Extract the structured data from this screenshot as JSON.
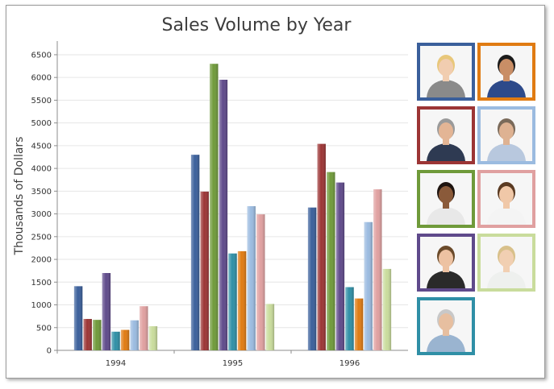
{
  "chart_data": {
    "type": "bar",
    "title": "Sales Volume by Year",
    "xlabel": "",
    "ylabel": "Thousands of Dollars",
    "categories": [
      "1994",
      "1995",
      "1996"
    ],
    "ylim": [
      0,
      6800
    ],
    "yticks": [
      0,
      500,
      1000,
      1500,
      2000,
      2500,
      3000,
      3500,
      4000,
      4500,
      5000,
      5500,
      6000,
      6500
    ],
    "grid": true,
    "legend": "right (photos)",
    "series": [
      {
        "color": "#3a5f9b",
        "values": [
          1410,
          4300,
          3140
        ]
      },
      {
        "color": "#9c3535",
        "values": [
          690,
          3490,
          4540
        ]
      },
      {
        "color": "#6f9a3a",
        "values": [
          670,
          6300,
          3920
        ]
      },
      {
        "color": "#5f4a8b",
        "values": [
          1700,
          5950,
          3690
        ]
      },
      {
        "color": "#2f8fa6",
        "values": [
          410,
          2130,
          1390
        ]
      },
      {
        "color": "#e07b12",
        "values": [
          450,
          2180,
          1140
        ]
      },
      {
        "color": "#9bbbe0",
        "values": [
          660,
          3170,
          2820
        ]
      },
      {
        "color": "#e0a0a0",
        "values": [
          970,
          2990,
          3540
        ]
      },
      {
        "color": "#c9dc9c",
        "values": [
          530,
          1020,
          1790
        ]
      }
    ]
  },
  "legend_photos": [
    {
      "border": "#3a5f9b",
      "skin": "#f1cdb0",
      "hair": "#e8c77a",
      "shirt": "#8a8a8a"
    },
    {
      "border": "#e07b12",
      "skin": "#c98e66",
      "hair": "#1b1b1b",
      "shirt": "#2d4a8a"
    },
    {
      "border": "#9c3535",
      "skin": "#e3b595",
      "hair": "#9a9a9a",
      "shirt": "#2e3a52"
    },
    {
      "border": "#9bbbe0",
      "skin": "#deb292",
      "hair": "#7a6a5a",
      "shirt": "#b8c8de"
    },
    {
      "border": "#6f9a3a",
      "skin": "#8a5a3a",
      "hair": "#1e1410",
      "shirt": "#e8e8e8"
    },
    {
      "border": "#e0a0a0",
      "skin": "#f0c8a8",
      "hair": "#5a3a22",
      "shirt": "#f4f4f4"
    },
    {
      "border": "#5f4a8b",
      "skin": "#edc2a2",
      "hair": "#6a4a2a",
      "shirt": "#2a2a2a"
    },
    {
      "border": "#c9dc9c",
      "skin": "#f1cfb2",
      "hair": "#d8c08a",
      "shirt": "#eef0ee"
    },
    {
      "border": "#2f8fa6",
      "skin": "#e7bfa0",
      "hair": "#c8c8c8",
      "shirt": "#9ab4d0"
    }
  ]
}
